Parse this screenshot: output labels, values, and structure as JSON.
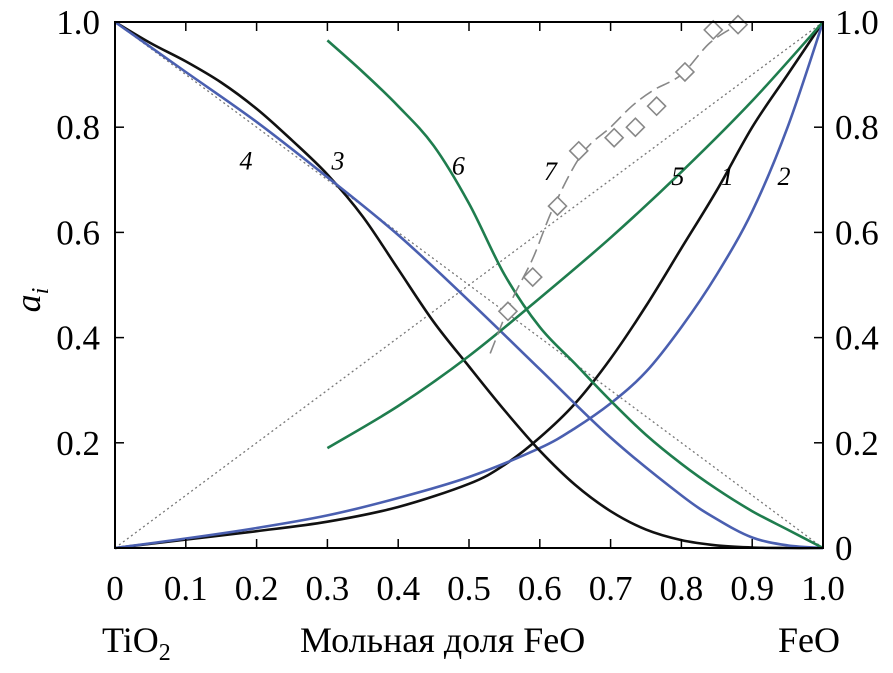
{
  "chart_data": {
    "type": "line",
    "xlabel": "Мольная доля FeO",
    "xlabel_left": "TiO",
    "xlabel_left_sub": "2",
    "xlabel_right": "FeO",
    "ylabel": "a",
    "ylabel_sub": "i",
    "xlim": [
      0,
      1
    ],
    "ylim": [
      0,
      1
    ],
    "x_ticks": [
      "0",
      "0.1",
      "0.2",
      "0.3",
      "0.4",
      "0.5",
      "0.6",
      "0.7",
      "0.8",
      "0.9",
      "1.0"
    ],
    "x_tick_values": [
      0,
      0.1,
      0.2,
      0.3,
      0.4,
      0.5,
      0.6,
      0.7,
      0.8,
      0.9,
      1.0
    ],
    "y_ticks_left": [
      "0.2",
      "0.4",
      "0.6",
      "0.8",
      "1.0"
    ],
    "y_tick_left_values": [
      0.2,
      0.4,
      0.6,
      0.8,
      1.0
    ],
    "y_ticks_right": [
      "0",
      "0.2",
      "0.4",
      "0.6",
      "0.8",
      "1.0"
    ],
    "y_tick_right_values": [
      0,
      0.2,
      0.4,
      0.6,
      0.8,
      1.0
    ],
    "colors": {
      "black": "#111111",
      "blue": "#4a5fb0",
      "green": "#1f7d4e",
      "gray": "#888888",
      "dotted": "#777777"
    },
    "series": [
      {
        "name": "1",
        "color": "black",
        "style": "solid",
        "x": [
          0,
          0.1,
          0.2,
          0.3,
          0.4,
          0.5,
          0.55,
          0.6,
          0.65,
          0.7,
          0.75,
          0.8,
          0.85,
          0.9,
          0.95,
          1.0
        ],
        "y": [
          0,
          0.016,
          0.032,
          0.05,
          0.078,
          0.122,
          0.158,
          0.21,
          0.275,
          0.36,
          0.46,
          0.57,
          0.68,
          0.8,
          0.9,
          1.0
        ]
      },
      {
        "name": "2",
        "color": "blue",
        "style": "solid",
        "x": [
          0,
          0.1,
          0.2,
          0.3,
          0.4,
          0.5,
          0.6,
          0.65,
          0.7,
          0.75,
          0.8,
          0.85,
          0.9,
          0.95,
          1.0
        ],
        "y": [
          0,
          0.018,
          0.038,
          0.062,
          0.095,
          0.135,
          0.19,
          0.228,
          0.275,
          0.335,
          0.42,
          0.52,
          0.64,
          0.8,
          1.0
        ]
      },
      {
        "name": "3",
        "color": "black",
        "style": "solid",
        "x": [
          0,
          0.05,
          0.1,
          0.15,
          0.2,
          0.25,
          0.3,
          0.35,
          0.4,
          0.45,
          0.5,
          0.55,
          0.6,
          0.65,
          0.7,
          0.75,
          0.8,
          0.85,
          0.9,
          0.95,
          1.0
        ],
        "y": [
          1.0,
          0.96,
          0.925,
          0.885,
          0.835,
          0.775,
          0.71,
          0.63,
          0.53,
          0.43,
          0.345,
          0.262,
          0.185,
          0.12,
          0.07,
          0.035,
          0.015,
          0.005,
          0.001,
          0,
          0
        ]
      },
      {
        "name": "4",
        "color": "blue",
        "style": "solid",
        "x": [
          0,
          0.1,
          0.2,
          0.3,
          0.4,
          0.5,
          0.6,
          0.7,
          0.8,
          0.85,
          0.9,
          0.95,
          1.0
        ],
        "y": [
          1.0,
          0.905,
          0.81,
          0.705,
          0.595,
          0.47,
          0.34,
          0.21,
          0.1,
          0.055,
          0.02,
          0.005,
          0
        ]
      },
      {
        "name": "5",
        "color": "green",
        "style": "solid",
        "x": [
          0.3,
          0.4,
          0.5,
          0.6,
          0.7,
          0.8,
          0.9,
          1.0
        ],
        "y": [
          0.19,
          0.27,
          0.365,
          0.475,
          0.59,
          0.715,
          0.85,
          1.0
        ]
      },
      {
        "name": "6",
        "color": "green",
        "style": "solid",
        "x": [
          0.3,
          0.35,
          0.4,
          0.45,
          0.5,
          0.55,
          0.6,
          0.65,
          0.7,
          0.75,
          0.8,
          0.85,
          0.9,
          0.95,
          1.0
        ],
        "y": [
          0.965,
          0.905,
          0.84,
          0.765,
          0.655,
          0.52,
          0.42,
          0.35,
          0.28,
          0.215,
          0.16,
          0.112,
          0.07,
          0.035,
          0
        ]
      },
      {
        "name": "7",
        "color": "gray",
        "style": "dashed",
        "x": [
          0.53,
          0.56,
          0.59,
          0.62,
          0.66,
          0.7,
          0.73,
          0.76,
          0.8,
          0.84,
          0.88
        ],
        "y": [
          0.37,
          0.47,
          0.55,
          0.65,
          0.75,
          0.8,
          0.84,
          0.87,
          0.9,
          0.96,
          0.995
        ]
      }
    ],
    "markers": {
      "series": "7",
      "shape": "diamond",
      "x": [
        0.555,
        0.59,
        0.625,
        0.655,
        0.705,
        0.735,
        0.765,
        0.805,
        0.845,
        0.88
      ],
      "y": [
        0.45,
        0.515,
        0.65,
        0.755,
        0.78,
        0.8,
        0.84,
        0.905,
        0.985,
        0.995
      ]
    },
    "reference_lines": [
      {
        "x": [
          0,
          1
        ],
        "y": [
          0,
          1
        ]
      },
      {
        "x": [
          0,
          1
        ],
        "y": [
          1,
          0
        ]
      }
    ],
    "curve_labels": [
      {
        "text": "1",
        "x": 0.865,
        "y": 0.69
      },
      {
        "text": "2",
        "x": 0.945,
        "y": 0.69
      },
      {
        "text": "3",
        "x": 0.315,
        "y": 0.72
      },
      {
        "text": "4",
        "x": 0.185,
        "y": 0.72
      },
      {
        "text": "5",
        "x": 0.795,
        "y": 0.69
      },
      {
        "text": "6",
        "x": 0.485,
        "y": 0.71
      },
      {
        "text": "7",
        "x": 0.615,
        "y": 0.7
      }
    ]
  }
}
